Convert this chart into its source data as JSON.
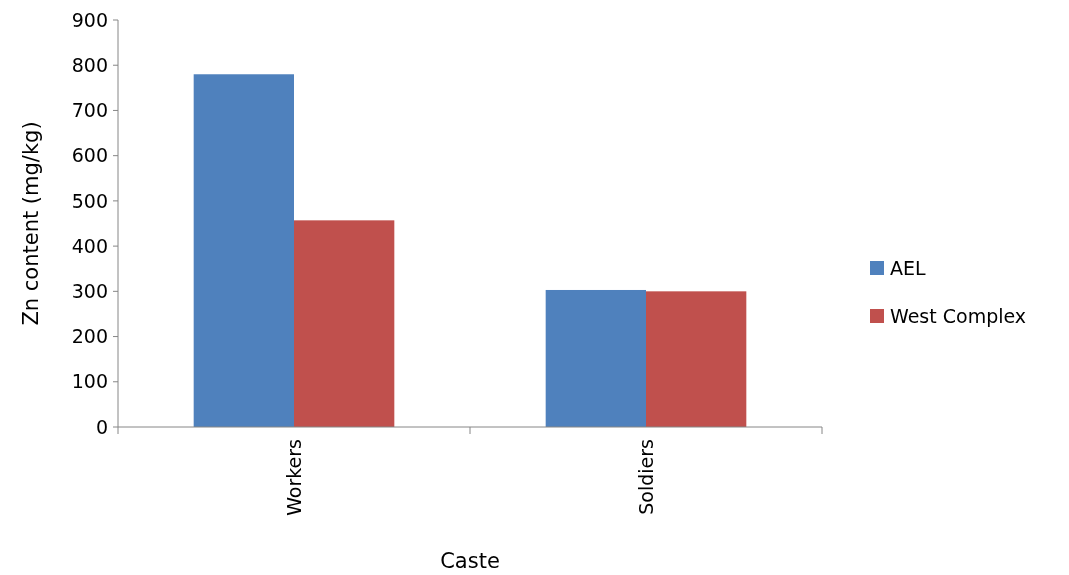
{
  "chart_data": {
    "type": "bar",
    "xlabel": "Caste",
    "ylabel": "Zn content (mg/kg)",
    "categories": [
      "Workers",
      "Soldiers"
    ],
    "series": [
      {
        "name": "AEL",
        "color": "#4f81bd",
        "values": [
          780,
          303
        ]
      },
      {
        "name": "West Complex",
        "color": "#c0504d",
        "values": [
          457,
          300
        ]
      }
    ],
    "ylim": [
      0,
      900
    ],
    "yticks": [
      0,
      100,
      200,
      300,
      400,
      500,
      600,
      700,
      800,
      900
    ],
    "grid": false,
    "legend": "right"
  }
}
